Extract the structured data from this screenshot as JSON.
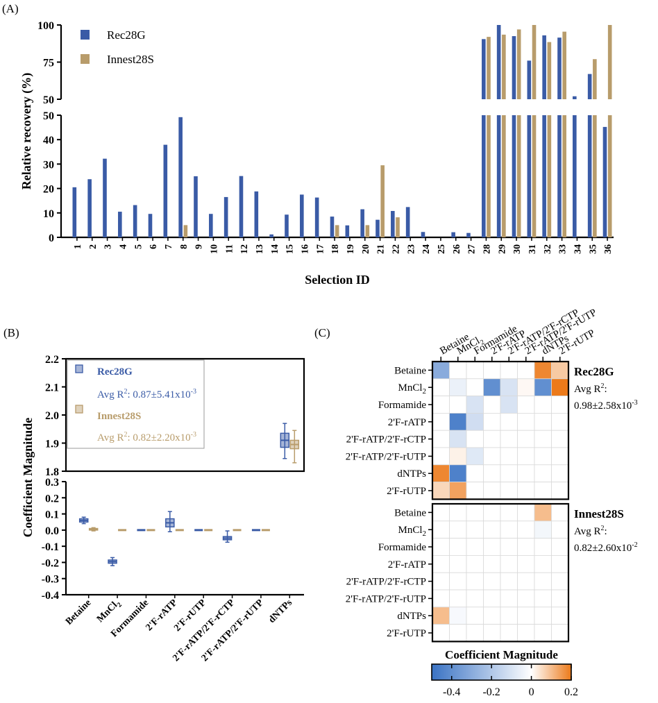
{
  "colors": {
    "rec": "#3a5ba6",
    "inn": "#b89c6b",
    "heat_neg": "#3a73c4",
    "heat_pos": "#ec7a1a",
    "heat_grid": "#d9d9d9"
  },
  "panels": {
    "a_label": "(A)",
    "b_label": "(B)",
    "c_label": "(C)"
  },
  "chart_data": [
    {
      "panel": "A",
      "type": "bar",
      "xlabel": "Selection ID",
      "ylabel": "Relative recovery (%)",
      "legend": [
        "Rec28G",
        "Innest28S"
      ],
      "legend_position": "top-left",
      "axis_break": true,
      "ylim_lower": [
        0,
        50
      ],
      "ylim_upper": [
        50,
        100
      ],
      "yticks_lower": [
        "0",
        "10",
        "20",
        "30",
        "40",
        "50"
      ],
      "yticks_upper": [
        "50",
        "75",
        "100"
      ],
      "categories": [
        "1",
        "2",
        "3",
        "4",
        "5",
        "6",
        "7",
        "8",
        "9",
        "10",
        "11",
        "12",
        "13",
        "14",
        "15",
        "16",
        "17",
        "18",
        "19",
        "20",
        "21",
        "22",
        "23",
        "24",
        "25",
        "26",
        "27",
        "28",
        "29",
        "30",
        "31",
        "32",
        "33",
        "34",
        "35",
        "36"
      ],
      "series": [
        {
          "name": "Rec28G",
          "values": [
            20.5,
            23.8,
            32.2,
            10.5,
            13.2,
            9.6,
            37.9,
            49.2,
            25.0,
            9.6,
            16.5,
            25.1,
            18.8,
            1.2,
            9.3,
            17.5,
            16.3,
            8.5,
            4.9,
            11.5,
            7.2,
            10.8,
            12.4,
            2.2,
            0,
            2.1,
            1.8,
            90.5,
            100,
            92.5,
            76,
            93,
            91.5,
            52,
            67,
            45.2
          ]
        },
        {
          "name": "Innest28S",
          "values": [
            0,
            0,
            0,
            0,
            0,
            0,
            0,
            5.0,
            0,
            0,
            0,
            0,
            0,
            0,
            0,
            0,
            0,
            5.0,
            0,
            5.0,
            29.5,
            8.2,
            0,
            0,
            0,
            0,
            0,
            92,
            93.5,
            97,
            100,
            88.5,
            95.5,
            0,
            77,
            100
          ]
        }
      ]
    },
    {
      "panel": "B",
      "type": "box",
      "ylabel": "Coefficient Magnitude",
      "axis_break": true,
      "ylim_lower": [
        -0.4,
        0.3
      ],
      "ylim_upper": [
        1.8,
        2.2
      ],
      "yticks_lower": [
        "-0.4",
        "-0.3",
        "-0.2",
        "-0.1",
        "0.0",
        "0.1",
        "0.2",
        "0.3"
      ],
      "yticks_upper": [
        "1.8",
        "1.9",
        "2.0",
        "2.1",
        "2.2"
      ],
      "categories": [
        "Betaine",
        "MnCl2",
        "Formamide",
        "2'F-rATP",
        "2'F-rUTP",
        "2'F-rATP/2'F-rCTP",
        "2'F-rATP/2'F-rUTP",
        "dNTPs"
      ],
      "category_labels": [
        {
          "main": "Betaine",
          "sub": ""
        },
        {
          "main": "MnCl",
          "sub": "2"
        },
        {
          "main": "Formamide",
          "sub": ""
        },
        {
          "main": "2'F-rATP",
          "sub": ""
        },
        {
          "main": "2'F-rUTP",
          "sub": ""
        },
        {
          "main": "2'F-rATP/2'F-rCTP",
          "sub": ""
        },
        {
          "main": "2'F-rATP/2'F-rUTP",
          "sub": ""
        },
        {
          "main": "dNTPs",
          "sub": ""
        }
      ],
      "legend": {
        "rec_name": "Rec28G",
        "rec_r2_prefix": "Avg R",
        "rec_r2_sup": "2",
        "rec_r2_value": ": 0.87±5.41x10",
        "rec_r2_exp": "-3",
        "inn_name": "Innest28S",
        "inn_r2_prefix": "Avg R",
        "inn_r2_sup": "2",
        "inn_r2_value": ": 0.82±2.20x10",
        "inn_r2_exp": "-3"
      },
      "series": [
        {
          "name": "Rec28G",
          "medians": [
            0.06,
            -0.195,
            0.0,
            0.045,
            0.0,
            -0.05,
            0.0,
            1.91
          ],
          "q1": [
            0.05,
            -0.205,
            0.0,
            0.02,
            0.0,
            -0.06,
            0.0,
            1.885
          ],
          "q3": [
            0.07,
            -0.185,
            0.0,
            0.07,
            0.0,
            -0.04,
            0.0,
            1.935
          ],
          "min": [
            0.04,
            -0.22,
            0.0,
            -0.01,
            0.0,
            -0.075,
            0.0,
            1.845
          ],
          "max": [
            0.08,
            -0.17,
            0.0,
            0.115,
            0.0,
            -0.005,
            0.0,
            1.97
          ]
        },
        {
          "name": "Innest28S",
          "medians": [
            0.005,
            0.0,
            0.0,
            0.0,
            0.0,
            0.0,
            0.0,
            1.895
          ],
          "q1": [
            0.0,
            0.0,
            0.0,
            0.0,
            0.0,
            0.0,
            0.0,
            1.88
          ],
          "q3": [
            0.01,
            0.0,
            0.0,
            0.0,
            0.0,
            0.0,
            0.0,
            1.91
          ],
          "min": [
            -0.005,
            0.0,
            0.0,
            0.0,
            0.0,
            0.0,
            0.0,
            1.83
          ],
          "max": [
            0.015,
            0.0,
            0.0,
            0.0,
            0.0,
            0.0,
            0.0,
            1.945
          ]
        }
      ]
    },
    {
      "panel": "C",
      "type": "heatmap",
      "colorbar_label": "Coefficient Magnitude",
      "colorbar_range": [
        -0.5,
        0.2
      ],
      "colorbar_ticks": [
        "-0.4",
        "-0.2",
        "0",
        "0.2"
      ],
      "colorbar_tick_values": [
        -0.4,
        -0.2,
        0,
        0.2
      ],
      "rows": [
        {
          "main": "Betaine",
          "sub": ""
        },
        {
          "main": "MnCl",
          "sub": "2"
        },
        {
          "main": "Formamide",
          "sub": ""
        },
        {
          "main": "2'F-rATP",
          "sub": ""
        },
        {
          "main": "2'F-rATP/2'F-rCTP",
          "sub": ""
        },
        {
          "main": "2'F-rATP/2'F-rUTP",
          "sub": ""
        },
        {
          "main": "dNTPs",
          "sub": ""
        },
        {
          "main": "2'F-rUTP",
          "sub": ""
        }
      ],
      "columns": [
        {
          "main": "Betaine",
          "sub": ""
        },
        {
          "main": "MnCl",
          "sub": "2"
        },
        {
          "main": "Formamide",
          "sub": ""
        },
        {
          "main": "2'F-rATP",
          "sub": ""
        },
        {
          "main": "2'F-rATP/2'F-rCTP",
          "sub": ""
        },
        {
          "main": "2'F-rATP/2'F-rUTP",
          "sub": ""
        },
        {
          "main": "dNTPs",
          "sub": ""
        },
        {
          "main": "2'F-rUTP",
          "sub": ""
        }
      ],
      "blocks": [
        {
          "name": "Rec28G",
          "r2_prefix": "Avg R",
          "r2_sup": "2",
          "r2_colon": ":",
          "r2_value": "0.98±2.58x10",
          "r2_exp": "-3",
          "matrix": [
            [
              -0.3,
              0,
              0,
              0,
              0,
              0,
              0.18,
              0.08
            ],
            [
              0,
              -0.05,
              0,
              -0.4,
              -0.1,
              0.01,
              -0.4,
              0.2
            ],
            [
              0,
              0,
              -0.1,
              0,
              -0.1,
              0,
              0,
              0
            ],
            [
              0,
              -0.45,
              -0.12,
              0,
              0,
              0,
              0,
              0
            ],
            [
              0,
              -0.1,
              0,
              0,
              0,
              0,
              0,
              0
            ],
            [
              0,
              0.02,
              -0.08,
              0,
              0,
              0,
              0,
              0
            ],
            [
              0.18,
              -0.45,
              0,
              0,
              0,
              0,
              0,
              0
            ],
            [
              0.06,
              0.14,
              0,
              0,
              0,
              0,
              0,
              0
            ]
          ]
        },
        {
          "name": "Innest28S",
          "r2_prefix": "Avg R",
          "r2_sup": "2",
          "r2_colon": ":",
          "r2_value": "0.82±2.60x10",
          "r2_exp": "-2",
          "matrix": [
            [
              0,
              0,
              0,
              0,
              0,
              0,
              0.1,
              0
            ],
            [
              0,
              0,
              0,
              0,
              0,
              0,
              -0.03,
              0
            ],
            [
              0,
              0,
              0,
              0,
              0,
              0,
              0,
              0
            ],
            [
              0,
              0,
              0,
              0,
              0,
              0,
              0,
              0
            ],
            [
              0,
              0,
              0,
              0,
              0,
              0,
              0,
              0
            ],
            [
              0,
              0,
              0,
              0,
              0,
              0,
              0,
              0
            ],
            [
              0.1,
              -0.02,
              0,
              0,
              0,
              0,
              0,
              0
            ],
            [
              0,
              0,
              0,
              0,
              0,
              0,
              0,
              0
            ]
          ]
        }
      ]
    }
  ]
}
